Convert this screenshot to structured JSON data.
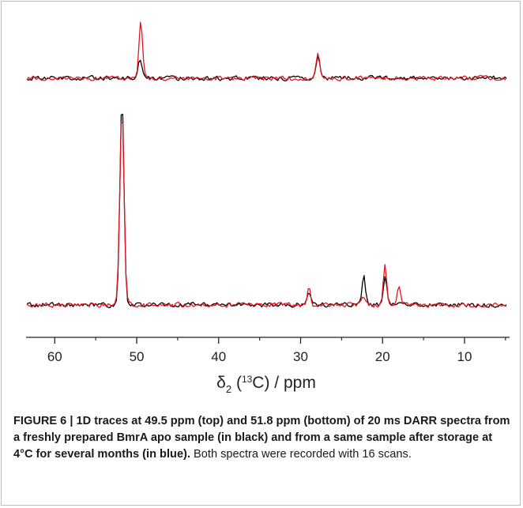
{
  "figure": {
    "caption_bold": "FIGURE 6 | 1D traces at 49.5 ppm (top) and 51.8 ppm (bottom) of 20 ms DARR spectra from a freshly prepared BmrA apo sample (in black) and from a same sample after storage at 4°C for several months (in blue).",
    "caption_rest": "Both spectra were recorded with 16 scans."
  },
  "chart_data": {
    "type": "line",
    "title": "",
    "xlabel": {
      "symbol": "δ",
      "subscript": "2",
      "nucleus_mass": "13",
      "nucleus": "C",
      "unit": "ppm"
    },
    "ylabel": "",
    "x_axis": {
      "reversed": true,
      "range": [
        63.5,
        4.5
      ],
      "major_ticks": [
        60,
        50,
        40,
        30,
        20,
        10
      ],
      "minor_ticks": [
        55,
        45,
        35,
        25,
        15,
        5
      ]
    },
    "grid": false,
    "legend": "none",
    "colors": {
      "fresh": "#000000",
      "stored": "#e8141e"
    },
    "panels": [
      {
        "id": "top",
        "trace_position_ppm": 49.5,
        "series": [
          {
            "key": "fresh",
            "peaks": [
              {
                "x": 49.6,
                "height": 0.25,
                "width": 0.3
              },
              {
                "x": 27.9,
                "height": 0.28,
                "width": 0.3
              }
            ]
          },
          {
            "key": "stored",
            "peaks": [
              {
                "x": 49.5,
                "height": 0.72,
                "width": 0.32
              },
              {
                "x": 27.9,
                "height": 0.31,
                "width": 0.3
              }
            ]
          }
        ]
      },
      {
        "id": "bottom",
        "trace_position_ppm": 51.8,
        "series": [
          {
            "key": "fresh",
            "peaks": [
              {
                "x": 51.8,
                "height": 1.0,
                "width": 0.35
              },
              {
                "x": 29.0,
                "height": 0.06,
                "width": 0.3
              },
              {
                "x": 22.3,
                "height": 0.14,
                "width": 0.3
              },
              {
                "x": 19.7,
                "height": 0.13,
                "width": 0.3
              }
            ]
          },
          {
            "key": "stored",
            "peaks": [
              {
                "x": 51.8,
                "height": 0.96,
                "width": 0.37
              },
              {
                "x": 29.0,
                "height": 0.08,
                "width": 0.3
              },
              {
                "x": 22.3,
                "height": 0.04,
                "width": 0.3
              },
              {
                "x": 19.7,
                "height": 0.19,
                "width": 0.3
              },
              {
                "x": 18.0,
                "height": 0.08,
                "width": 0.3
              }
            ]
          }
        ]
      }
    ]
  }
}
